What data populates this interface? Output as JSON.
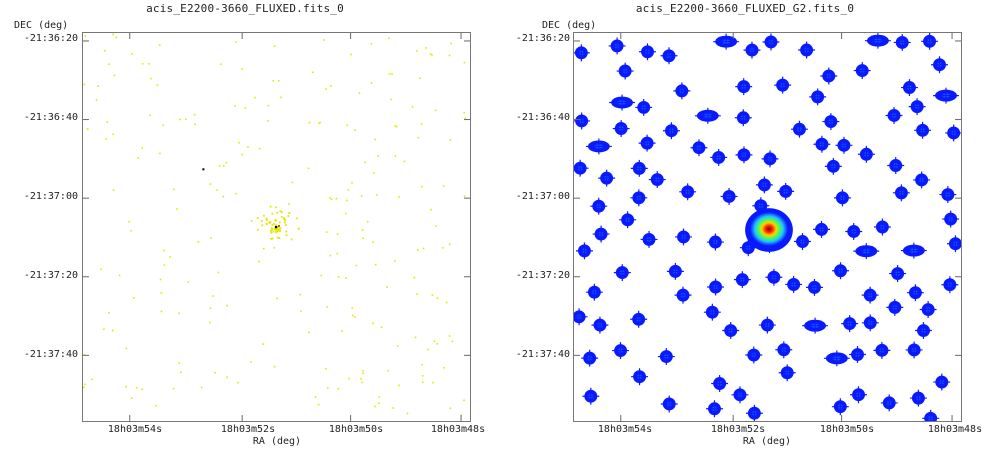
{
  "panels": [
    {
      "title": "acis_E2200-3660_FLUXED.fits_0",
      "y_axis_label": "DEC (deg)",
      "x_axis_label": "RA (deg)",
      "y_ticks": [
        "-21:36:20",
        "-21:36:40",
        "-21:37:00",
        "-21:37:20",
        "-21:37:40"
      ],
      "x_ticks": [
        "18h03m54s",
        "18h03m52s",
        "18h03m50s",
        "18h03m48s"
      ]
    },
    {
      "title": "acis_E2200-3660_FLUXED_G2.fits_0",
      "y_axis_label": "DEC (deg)",
      "x_axis_label": "RA (deg)",
      "y_ticks": [
        "-21:36:20",
        "-21:36:40",
        "-21:37:00",
        "-21:37:20",
        "-21:37:40"
      ],
      "x_ticks": [
        "18h03m54s",
        "18h03m52s",
        "18h03m50s",
        "18h03m48s"
      ]
    }
  ],
  "colors": {
    "raw_event": "#e6e600",
    "raw_hot": "#000000",
    "smooth_outer": "#0a1aff",
    "smooth_mid": "#21a6ff",
    "smooth_core": "#d42000"
  }
}
